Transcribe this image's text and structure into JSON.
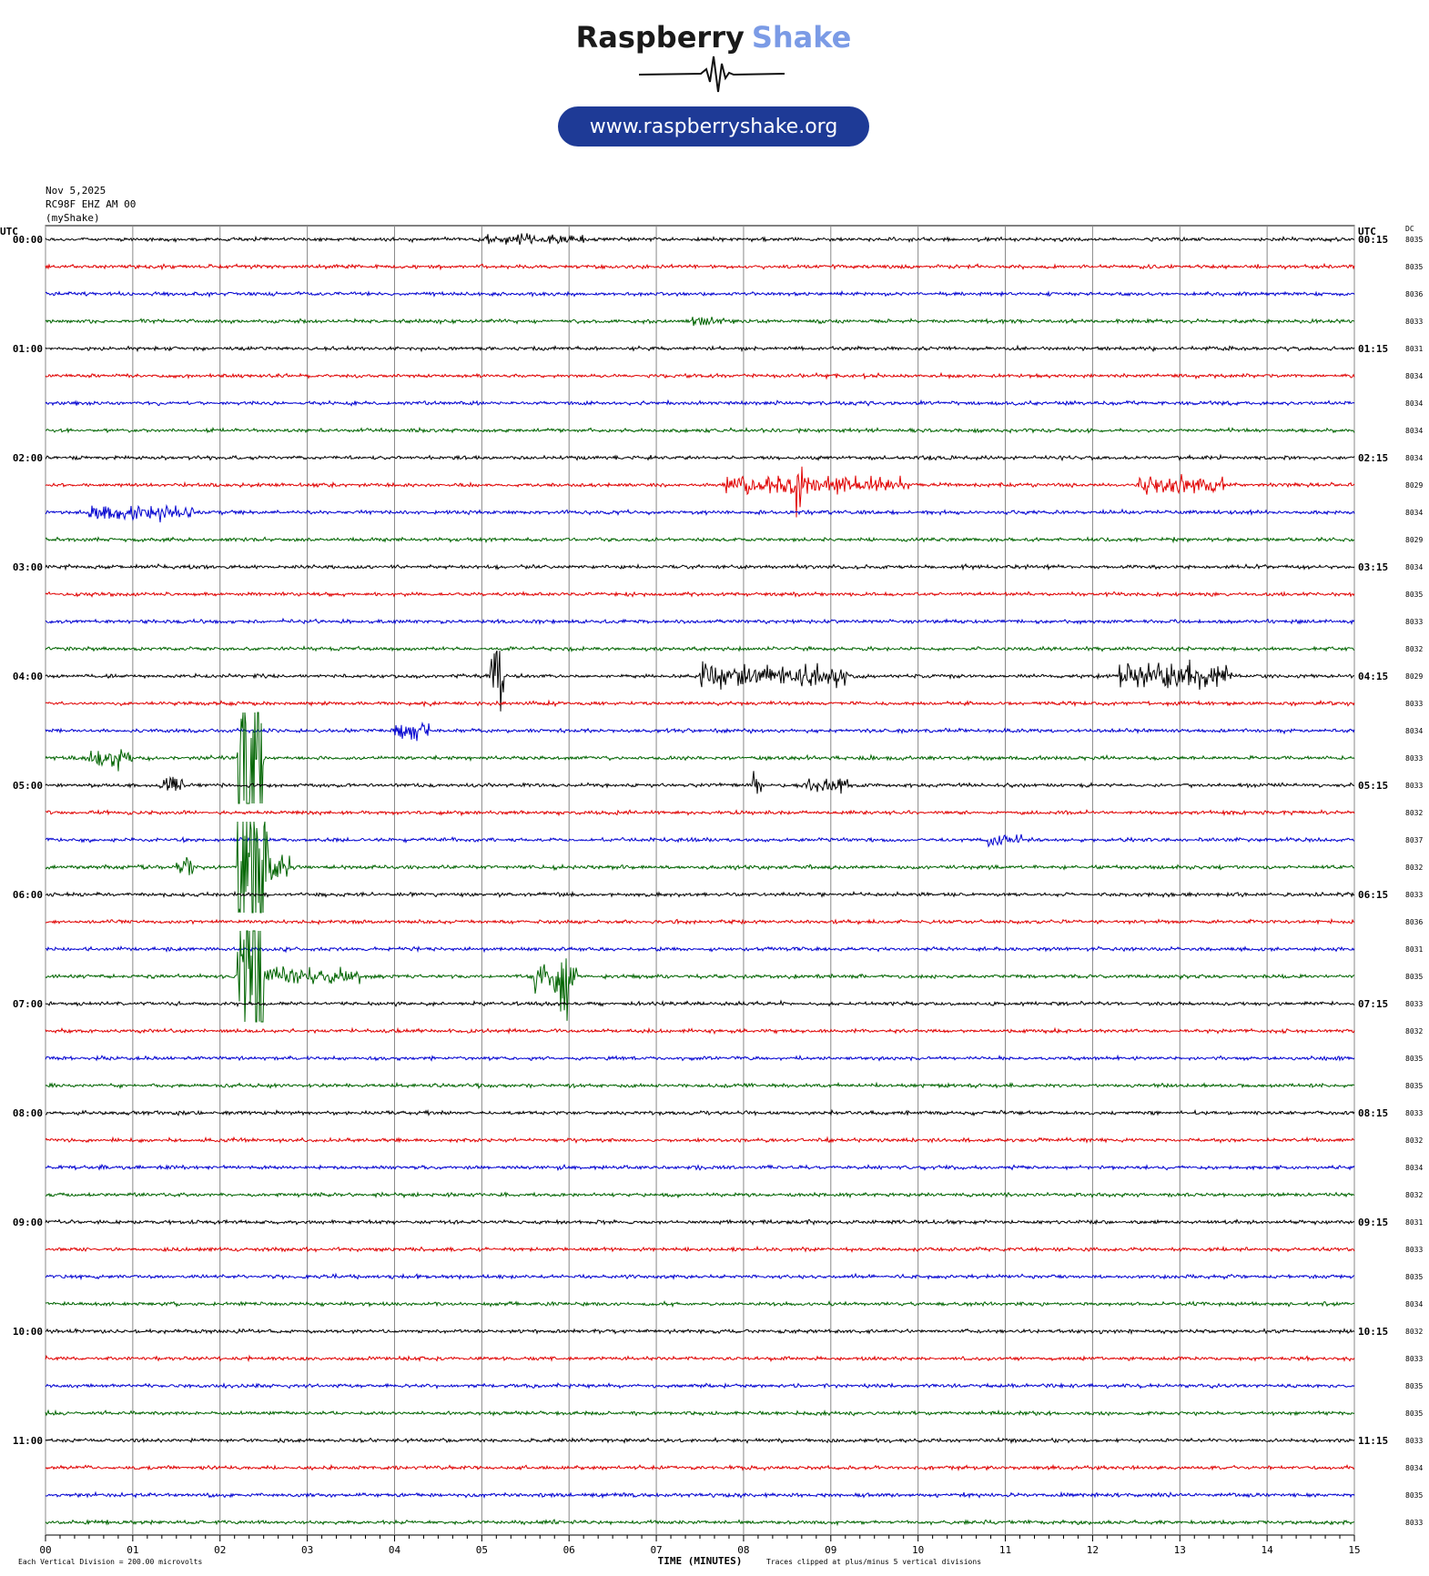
{
  "logo": {
    "brand": "Raspberry",
    "brand_accent": "Shake",
    "url": "www.raspberryshake.org"
  },
  "header": {
    "date": "Nov 5,2025",
    "station": "RC98F EHZ AM 00",
    "network": "(myShake)"
  },
  "left_axis_title": "UTC",
  "right_axis_title": "UTC",
  "dc_title": "DC",
  "trace_colors": [
    "#000000",
    "#e00000",
    "#0000d0",
    "#006400"
  ],
  "rows": [
    {
      "left": "00:00",
      "right": "00:15",
      "dc": "8035"
    },
    {
      "left": null,
      "right": null,
      "dc": "8035"
    },
    {
      "left": null,
      "right": null,
      "dc": "8036"
    },
    {
      "left": null,
      "right": null,
      "dc": "8033"
    },
    {
      "left": "01:00",
      "right": "01:15",
      "dc": "8031"
    },
    {
      "left": null,
      "right": null,
      "dc": "8034"
    },
    {
      "left": null,
      "right": null,
      "dc": "8034"
    },
    {
      "left": null,
      "right": null,
      "dc": "8034"
    },
    {
      "left": "02:00",
      "right": "02:15",
      "dc": "8034"
    },
    {
      "left": null,
      "right": null,
      "dc": "8029"
    },
    {
      "left": null,
      "right": null,
      "dc": "8034"
    },
    {
      "left": null,
      "right": null,
      "dc": "8029"
    },
    {
      "left": "03:00",
      "right": "03:15",
      "dc": "8034"
    },
    {
      "left": null,
      "right": null,
      "dc": "8035"
    },
    {
      "left": null,
      "right": null,
      "dc": "8033"
    },
    {
      "left": null,
      "right": null,
      "dc": "8032"
    },
    {
      "left": "04:00",
      "right": "04:15",
      "dc": "8029"
    },
    {
      "left": null,
      "right": null,
      "dc": "8033"
    },
    {
      "left": null,
      "right": null,
      "dc": "8034"
    },
    {
      "left": null,
      "right": null,
      "dc": "8033"
    },
    {
      "left": "05:00",
      "right": "05:15",
      "dc": "8033"
    },
    {
      "left": null,
      "right": null,
      "dc": "8032"
    },
    {
      "left": null,
      "right": null,
      "dc": "8037"
    },
    {
      "left": null,
      "right": null,
      "dc": "8032"
    },
    {
      "left": "06:00",
      "right": "06:15",
      "dc": "8033"
    },
    {
      "left": null,
      "right": null,
      "dc": "8036"
    },
    {
      "left": null,
      "right": null,
      "dc": "8031"
    },
    {
      "left": null,
      "right": null,
      "dc": "8035"
    },
    {
      "left": "07:00",
      "right": "07:15",
      "dc": "8033"
    },
    {
      "left": null,
      "right": null,
      "dc": "8032"
    },
    {
      "left": null,
      "right": null,
      "dc": "8035"
    },
    {
      "left": null,
      "right": null,
      "dc": "8035"
    },
    {
      "left": "08:00",
      "right": "08:15",
      "dc": "8033"
    },
    {
      "left": null,
      "right": null,
      "dc": "8032"
    },
    {
      "left": null,
      "right": null,
      "dc": "8034"
    },
    {
      "left": null,
      "right": null,
      "dc": "8032"
    },
    {
      "left": "09:00",
      "right": "09:15",
      "dc": "8031"
    },
    {
      "left": null,
      "right": null,
      "dc": "8033"
    },
    {
      "left": null,
      "right": null,
      "dc": "8035"
    },
    {
      "left": null,
      "right": null,
      "dc": "8034"
    },
    {
      "left": "10:00",
      "right": "10:15",
      "dc": "8032"
    },
    {
      "left": null,
      "right": null,
      "dc": "8033"
    },
    {
      "left": null,
      "right": null,
      "dc": "8035"
    },
    {
      "left": null,
      "right": null,
      "dc": "8035"
    },
    {
      "left": "11:00",
      "right": "11:15",
      "dc": "8033"
    },
    {
      "left": null,
      "right": null,
      "dc": "8034"
    },
    {
      "left": null,
      "right": null,
      "dc": "8035"
    },
    {
      "left": null,
      "right": null,
      "dc": "8033"
    }
  ],
  "x_axis": {
    "title": "TIME (MINUTES)",
    "ticks": [
      "00",
      "01",
      "02",
      "03",
      "04",
      "05",
      "06",
      "07",
      "08",
      "09",
      "10",
      "11",
      "12",
      "13",
      "14",
      "15"
    ]
  },
  "footer": {
    "scale": "Each Vertical Division =  200.00 microvolts",
    "clip": "Traces clipped at plus/minus 5 vertical divisions"
  }
}
